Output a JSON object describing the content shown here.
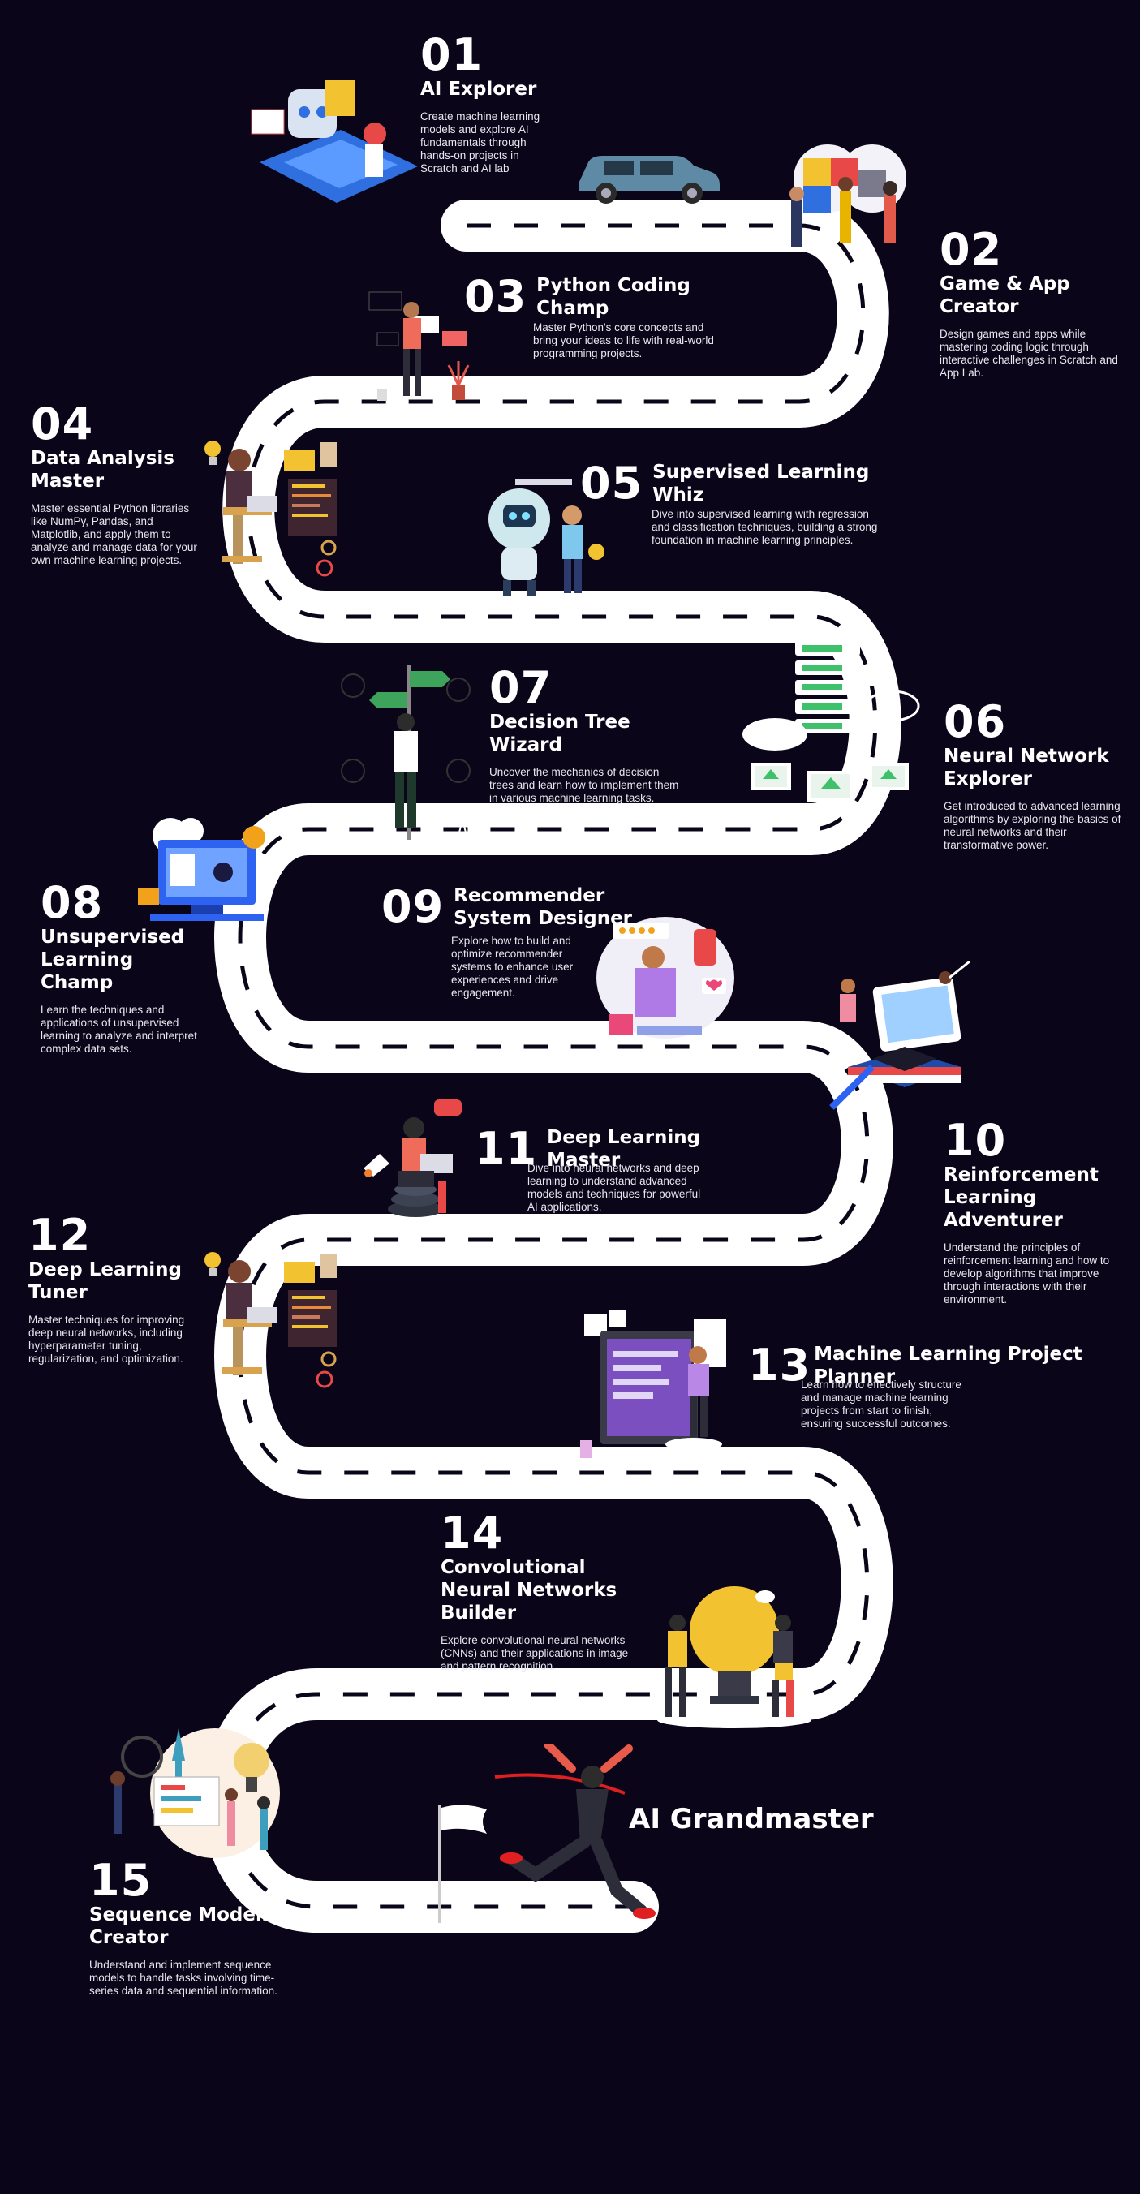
{
  "steps": [
    {
      "num": "01",
      "title": "AI Explorer",
      "desc": "Create machine learning models and explore AI fundamentals through hands-on projects in Scratch and AI lab"
    },
    {
      "num": "02",
      "title": "Game & App Creator",
      "desc": "Design games and apps while mastering coding logic through interactive challenges in Scratch and App Lab."
    },
    {
      "num": "03",
      "title": "Python Coding Champ",
      "desc": "Master Python's core concepts and bring your ideas to life with real-world programming projects."
    },
    {
      "num": "04",
      "title": "Data Analysis Master",
      "desc": "Master essential Python libraries like NumPy, Pandas, and Matplotlib, and apply them to analyze and manage data for your own machine learning projects."
    },
    {
      "num": "05",
      "title": "Supervised Learning Whiz",
      "desc": "Dive into supervised learning with regression and classification techniques, building a strong foundation in machine learning principles."
    },
    {
      "num": "06",
      "title": "Neural Network Explorer",
      "desc": "Get introduced to advanced learning algorithms by exploring the basics of neural networks and their transformative power."
    },
    {
      "num": "07",
      "title": "Decision Tree Wizard",
      "desc": "Uncover the mechanics of decision trees and learn how to implement them in various machine learning tasks."
    },
    {
      "num": "08",
      "title": "Unsupervised Learning Champ",
      "desc": "Learn the techniques and applications of unsupervised learning to analyze and interpret complex data sets."
    },
    {
      "num": "09",
      "title": "Recommender System Designer",
      "desc": "Explore how to build and optimize recommender systems to enhance user experiences and drive engagement."
    },
    {
      "num": "10",
      "title": "Reinforcement Learning Adventurer",
      "desc": "Understand the principles of reinforcement learning and how to develop algorithms that improve through interactions with their environment."
    },
    {
      "num": "11",
      "title": "Deep Learning Master",
      "desc": "Dive into neural networks and deep learning to understand advanced models and techniques for powerful AI applications."
    },
    {
      "num": "12",
      "title": "Deep Learning Tuner",
      "desc": "Master techniques for improving deep neural networks, including hyperparameter tuning, regularization, and optimization."
    },
    {
      "num": "13",
      "title": "Machine Learning Project Planner",
      "desc": "Learn how to effectively structure and manage machine learning projects from start to finish, ensuring successful outcomes."
    },
    {
      "num": "14",
      "title": "Convolutional Neural Networks Builder",
      "desc": "Explore convolutional neural networks (CNNs) and their applications in image and pattern recognition."
    },
    {
      "num": "15",
      "title": "Sequence Models Creator",
      "desc": "Understand and implement sequence models to handle tasks involving time-series data and sequential information."
    }
  ],
  "finale": {
    "title": "AI Grandmaster"
  },
  "colors": {
    "background": "#0b0519",
    "road": "#ffffff",
    "text": "#ffffff"
  },
  "illustrations": [
    "laptop-robot-illustration",
    "car-icon",
    "puzzle-team-illustration",
    "coder-illustration",
    "analyst-desk-illustration",
    "robot-mentor-illustration",
    "server-cloud-illustration",
    "signpost-person-illustration",
    "monitor-gears-illustration",
    "shopping-recommend-illustration",
    "graduation-laptop-illustration",
    "rocket-person-illustration",
    "analyst-desk-illustration",
    "planner-board-illustration",
    "lightbulb-team-illustration",
    "team-board-illustration",
    "finish-runner-illustration"
  ]
}
